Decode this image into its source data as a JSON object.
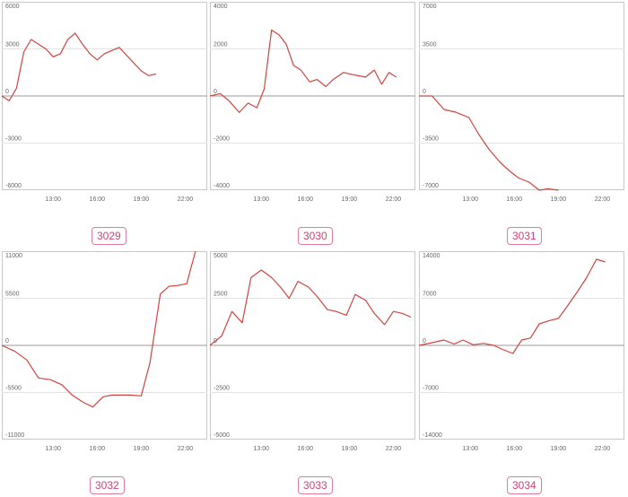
{
  "chart_data": [
    {
      "type": "line",
      "label": "3029",
      "ylim": [
        -6000,
        6000
      ],
      "y_ticks": [
        "6000",
        "3000",
        "0",
        "-3000",
        "-6000"
      ],
      "x_ticks": [
        "13:00",
        "16:00",
        "19:00",
        "22:00"
      ],
      "x_tick_values": [
        13,
        16,
        19,
        22
      ],
      "xlim": [
        9.5,
        23.5
      ],
      "x": [
        9.5,
        10.0,
        10.5,
        11.0,
        11.5,
        12.0,
        12.5,
        13.0,
        13.5,
        14.0,
        14.5,
        15.0,
        15.5,
        16.0,
        16.5,
        17.0,
        17.5,
        18.0,
        18.5,
        19.0,
        19.5,
        20.0,
        20.5,
        21.0
      ],
      "y": [
        0,
        -300,
        500,
        2800,
        3600,
        3300,
        3000,
        2500,
        2700,
        3600,
        4000,
        3300,
        2700,
        2300,
        2700,
        2900,
        3100,
        2600,
        2100,
        1600,
        1300,
        1400,
        null,
        null
      ]
    },
    {
      "type": "line",
      "label": "3030",
      "ylim": [
        -4000,
        4000
      ],
      "y_ticks": [
        "4000",
        "2000",
        "0",
        "-2000",
        "-4000"
      ],
      "x_ticks": [
        "13:00",
        "16:00",
        "19:00",
        "22:00"
      ],
      "x_tick_values": [
        13,
        16,
        19,
        22
      ],
      "xlim": [
        9.5,
        23.5
      ],
      "x": [
        9.5,
        10.2,
        10.8,
        11.5,
        12.1,
        12.7,
        13.2,
        13.7,
        14.2,
        14.7,
        15.2,
        15.7,
        16.3,
        16.8,
        17.4,
        17.9,
        18.6,
        19.3,
        20.1,
        20.7,
        21.2,
        21.7,
        22.2,
        22.7
      ],
      "y": [
        0,
        100,
        -200,
        -700,
        -300,
        -500,
        300,
        2800,
        2600,
        2200,
        1300,
        1100,
        600,
        700,
        400,
        700,
        1000,
        900,
        800,
        1100,
        500,
        1000,
        800,
        null
      ]
    },
    {
      "type": "line",
      "label": "3031",
      "ylim": [
        -7000,
        7000
      ],
      "y_ticks": [
        "7000",
        "3500",
        "0",
        "-3500",
        "-7000"
      ],
      "x_ticks": [
        "13:00",
        "16:00",
        "19:00",
        "22:00"
      ],
      "x_tick_values": [
        13,
        16,
        19,
        22
      ],
      "xlim": [
        9.5,
        23.5
      ],
      "x": [
        9.5,
        10.4,
        11.2,
        12.0,
        12.9,
        13.6,
        14.3,
        15.0,
        15.7,
        16.3,
        17.0,
        17.7,
        18.3,
        19.0
      ],
      "y": [
        0,
        0,
        -1000,
        -1200,
        -1600,
        -2900,
        -4000,
        -4900,
        -5600,
        -6100,
        -6400,
        -7000,
        -6900,
        -7000
      ]
    },
    {
      "type": "line",
      "label": "3032",
      "ylim": [
        -11000,
        11000
      ],
      "y_ticks": [
        "11000",
        "5500",
        "0",
        "-5500",
        "-11000"
      ],
      "x_ticks": [
        "13:00",
        "16:00",
        "19:00",
        "22:00"
      ],
      "x_tick_values": [
        13,
        16,
        19,
        22
      ],
      "xlim": [
        9.5,
        23.5
      ],
      "x": [
        9.5,
        10.4,
        11.2,
        12.0,
        12.8,
        13.6,
        14.3,
        15.0,
        15.7,
        16.4,
        17.0,
        17.7,
        18.3,
        19.0,
        19.6,
        20.3,
        20.9,
        21.5,
        22.1,
        22.7
      ],
      "y": [
        0,
        -700,
        -1700,
        -3800,
        -4000,
        -4600,
        -5800,
        -6600,
        -7200,
        -6000,
        -5800,
        -5800,
        -5800,
        -5900,
        -2000,
        6000,
        6900,
        7000,
        7200,
        11000
      ]
    },
    {
      "type": "line",
      "label": "3033",
      "ylim": [
        -5000,
        5000
      ],
      "y_ticks": [
        "5000",
        "2500",
        "0",
        "-2500",
        "-5000"
      ],
      "x_ticks": [
        "13:00",
        "16:00",
        "19:00",
        "22:00"
      ],
      "x_tick_values": [
        13,
        16,
        19,
        22
      ],
      "xlim": [
        9.5,
        23.5
      ],
      "x": [
        9.5,
        10.3,
        11.0,
        11.7,
        12.3,
        13.0,
        13.7,
        14.3,
        14.9,
        15.5,
        16.2,
        16.8,
        17.5,
        18.1,
        18.8,
        19.4,
        20.1,
        20.7,
        21.4,
        22.0,
        22.6,
        23.2
      ],
      "y": [
        0,
        500,
        1800,
        1200,
        3600,
        4000,
        3600,
        3100,
        2500,
        3400,
        3100,
        2600,
        1900,
        1800,
        1600,
        2700,
        2400,
        1700,
        1100,
        1800,
        1700,
        1500
      ]
    },
    {
      "type": "line",
      "label": "3034",
      "ylim": [
        -14000,
        14000
      ],
      "y_ticks": [
        "14000",
        "7000",
        "0",
        "-7000",
        "-14000"
      ],
      "x_ticks": [
        "13:00",
        "16:00",
        "19:00",
        "22:00"
      ],
      "x_tick_values": [
        13,
        16,
        19,
        22
      ],
      "xlim": [
        9.5,
        23.5
      ],
      "x": [
        9.5,
        10.4,
        11.2,
        11.9,
        12.5,
        13.2,
        13.9,
        14.6,
        15.2,
        15.9,
        16.5,
        17.1,
        17.7,
        18.4,
        19.0,
        19.6,
        20.3,
        20.9,
        21.6,
        22.2
      ],
      "y": [
        0,
        400,
        800,
        200,
        800,
        100,
        300,
        0,
        -600,
        -1200,
        800,
        1100,
        3200,
        3700,
        4000,
        5800,
        8000,
        10000,
        12800,
        12400
      ]
    }
  ]
}
